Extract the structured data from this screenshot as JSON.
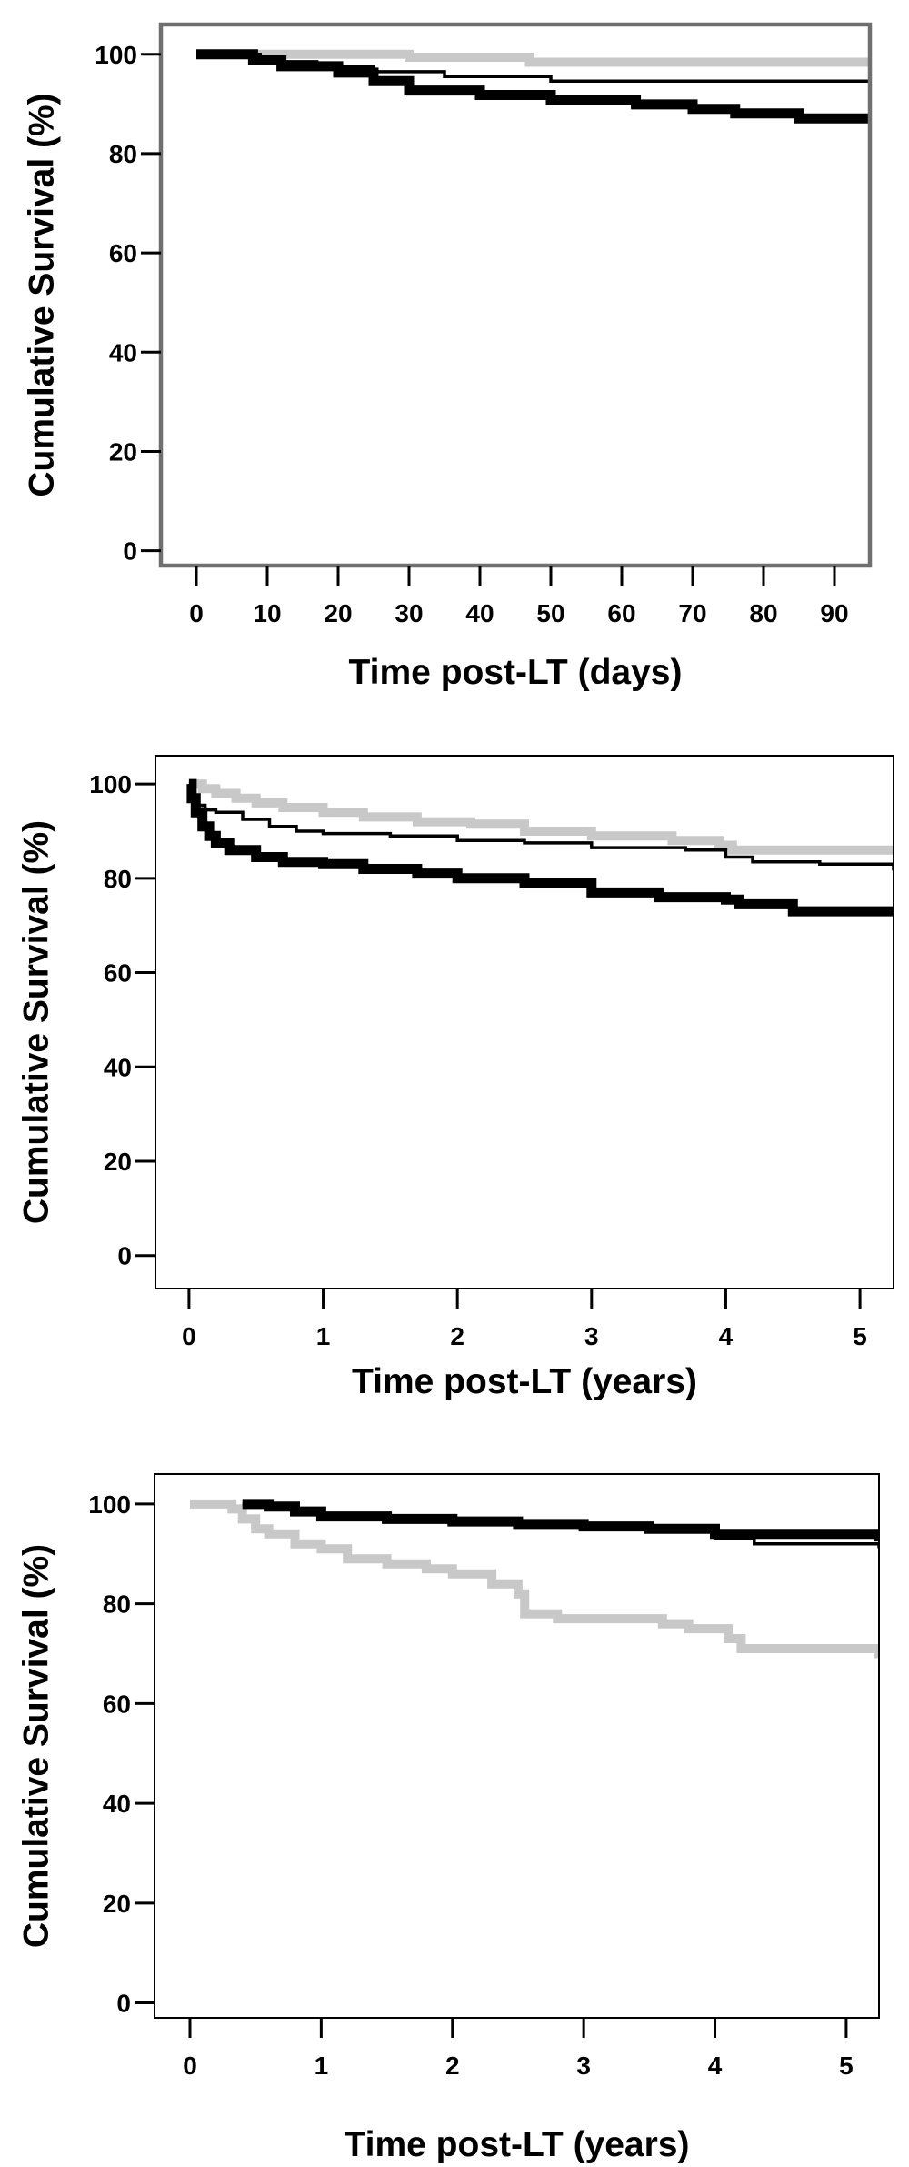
{
  "chart_data": [
    {
      "type": "line",
      "subtype": "kaplan-meier",
      "xlabel": "Time post-LT (days)",
      "ylabel": "Cumulative Survival (%)",
      "xlim": [
        -5,
        95
      ],
      "ylim": [
        -3,
        106
      ],
      "xticks": [
        0,
        10,
        20,
        30,
        40,
        50,
        60,
        70,
        80,
        90
      ],
      "yticks": [
        0,
        20,
        40,
        60,
        80,
        100
      ],
      "grid": false,
      "series": [
        {
          "color": "#c8c8c8",
          "weight": "thick",
          "x": [
            0,
            30,
            30,
            47,
            47,
            95
          ],
          "y": [
            100,
            100,
            99.4,
            99.4,
            98.4,
            98.4
          ]
        },
        {
          "color": "#000000",
          "weight": "thin",
          "x": [
            0,
            9,
            9,
            17,
            17,
            25,
            25,
            35,
            35,
            50,
            50,
            95
          ],
          "y": [
            100,
            100,
            98.5,
            98.5,
            97.5,
            97.5,
            96.5,
            96.5,
            95.5,
            95.5,
            94.6,
            94.6
          ]
        },
        {
          "color": "#000000",
          "weight": "thick",
          "x": [
            0,
            8,
            8,
            12,
            12,
            20,
            20,
            25,
            25,
            30,
            30,
            40,
            40,
            50,
            50,
            62,
            62,
            70,
            70,
            76,
            76,
            85,
            85,
            95
          ],
          "y": [
            100,
            100,
            98.8,
            98.8,
            97.6,
            97.6,
            96.3,
            96.3,
            94.6,
            94.6,
            92.7,
            92.7,
            91.8,
            91.8,
            90.8,
            90.8,
            89.9,
            89.9,
            89,
            89,
            88.1,
            88.1,
            87.1,
            87.1
          ]
        }
      ]
    },
    {
      "type": "line",
      "subtype": "kaplan-meier",
      "xlabel": "Time post-LT (years)",
      "ylabel": "Cumulative Survival (%)",
      "xlim": [
        -0.25,
        5.25
      ],
      "ylim": [
        -7,
        106
      ],
      "xticks": [
        0,
        1,
        2,
        3,
        4,
        5
      ],
      "yticks": [
        0,
        20,
        40,
        60,
        80,
        100
      ],
      "grid": false,
      "series": [
        {
          "color": "#c8c8c8",
          "weight": "thick",
          "x": [
            0,
            0.1,
            0.2,
            0.35,
            0.5,
            0.7,
            1.0,
            1.3,
            1.7,
            2.1,
            2.5,
            3.0,
            3.6,
            3.95,
            4.05,
            5.25
          ],
          "y": [
            100,
            99,
            98,
            97,
            96,
            95,
            94,
            93,
            92,
            91.5,
            90,
            89,
            88,
            87,
            86,
            86
          ]
        },
        {
          "color": "#000000",
          "weight": "thin",
          "x": [
            0,
            0.03,
            0.07,
            0.12,
            0.2,
            0.4,
            0.6,
            0.8,
            1.0,
            1.5,
            2.0,
            2.5,
            3.0,
            3.7,
            4.0,
            4.2,
            4.7,
            5.25
          ],
          "y": [
            100,
            97.5,
            95.5,
            94.5,
            94,
            92.5,
            91,
            90,
            89.5,
            89,
            88,
            87.5,
            86.5,
            86,
            84.5,
            83.5,
            83,
            82
          ]
        },
        {
          "color": "#000000",
          "weight": "thick",
          "x": [
            0,
            0.02,
            0.05,
            0.1,
            0.15,
            0.2,
            0.3,
            0.5,
            0.7,
            1.0,
            1.3,
            1.7,
            2.0,
            2.5,
            3.0,
            3.5,
            4.0,
            4.1,
            4.5,
            5.25
          ],
          "y": [
            100,
            97,
            94,
            91,
            89,
            87.5,
            86,
            84.5,
            83.5,
            83,
            82,
            81,
            80,
            79,
            77,
            76,
            75.5,
            74.5,
            73,
            73
          ]
        }
      ]
    },
    {
      "type": "line",
      "subtype": "kaplan-meier",
      "xlabel": "Time post-LT (years)",
      "ylabel": "Cumulative Survival (%)",
      "xlim": [
        -0.27,
        5.25
      ],
      "ylim": [
        -3,
        106
      ],
      "xticks": [
        0,
        1,
        2,
        3,
        4,
        5
      ],
      "yticks": [
        0,
        20,
        40,
        60,
        80,
        100
      ],
      "grid": false,
      "series": [
        {
          "color": "#c8c8c8",
          "weight": "thick",
          "x": [
            0,
            0.32,
            0.4,
            0.5,
            0.6,
            0.8,
            1.0,
            1.2,
            1.5,
            1.8,
            2.0,
            2.3,
            2.5,
            2.55,
            2.8,
            3.6,
            3.8,
            4.1,
            4.2,
            5.0,
            5.25
          ],
          "y": [
            100,
            99,
            97,
            95,
            94,
            92,
            91,
            89,
            88,
            87,
            86,
            84,
            82,
            78,
            77,
            76,
            75,
            73,
            71,
            71,
            70
          ]
        },
        {
          "color": "#000000",
          "weight": "thin",
          "x": [
            0.4,
            0.7,
            1.0,
            1.5,
            2.0,
            2.5,
            3.0,
            3.5,
            4.0,
            4.3,
            5.25
          ],
          "y": [
            100,
            99,
            98,
            97,
            96.5,
            96,
            95,
            94.5,
            93,
            92,
            91.5
          ]
        },
        {
          "color": "#000000",
          "weight": "thick",
          "x": [
            0.4,
            0.6,
            0.8,
            1.0,
            1.5,
            2.0,
            2.5,
            3.0,
            3.5,
            4.0,
            5.25
          ],
          "y": [
            100,
            99.5,
            98.5,
            97.5,
            97,
            96.5,
            96,
            95.5,
            95,
            94,
            93.5
          ]
        }
      ]
    }
  ]
}
